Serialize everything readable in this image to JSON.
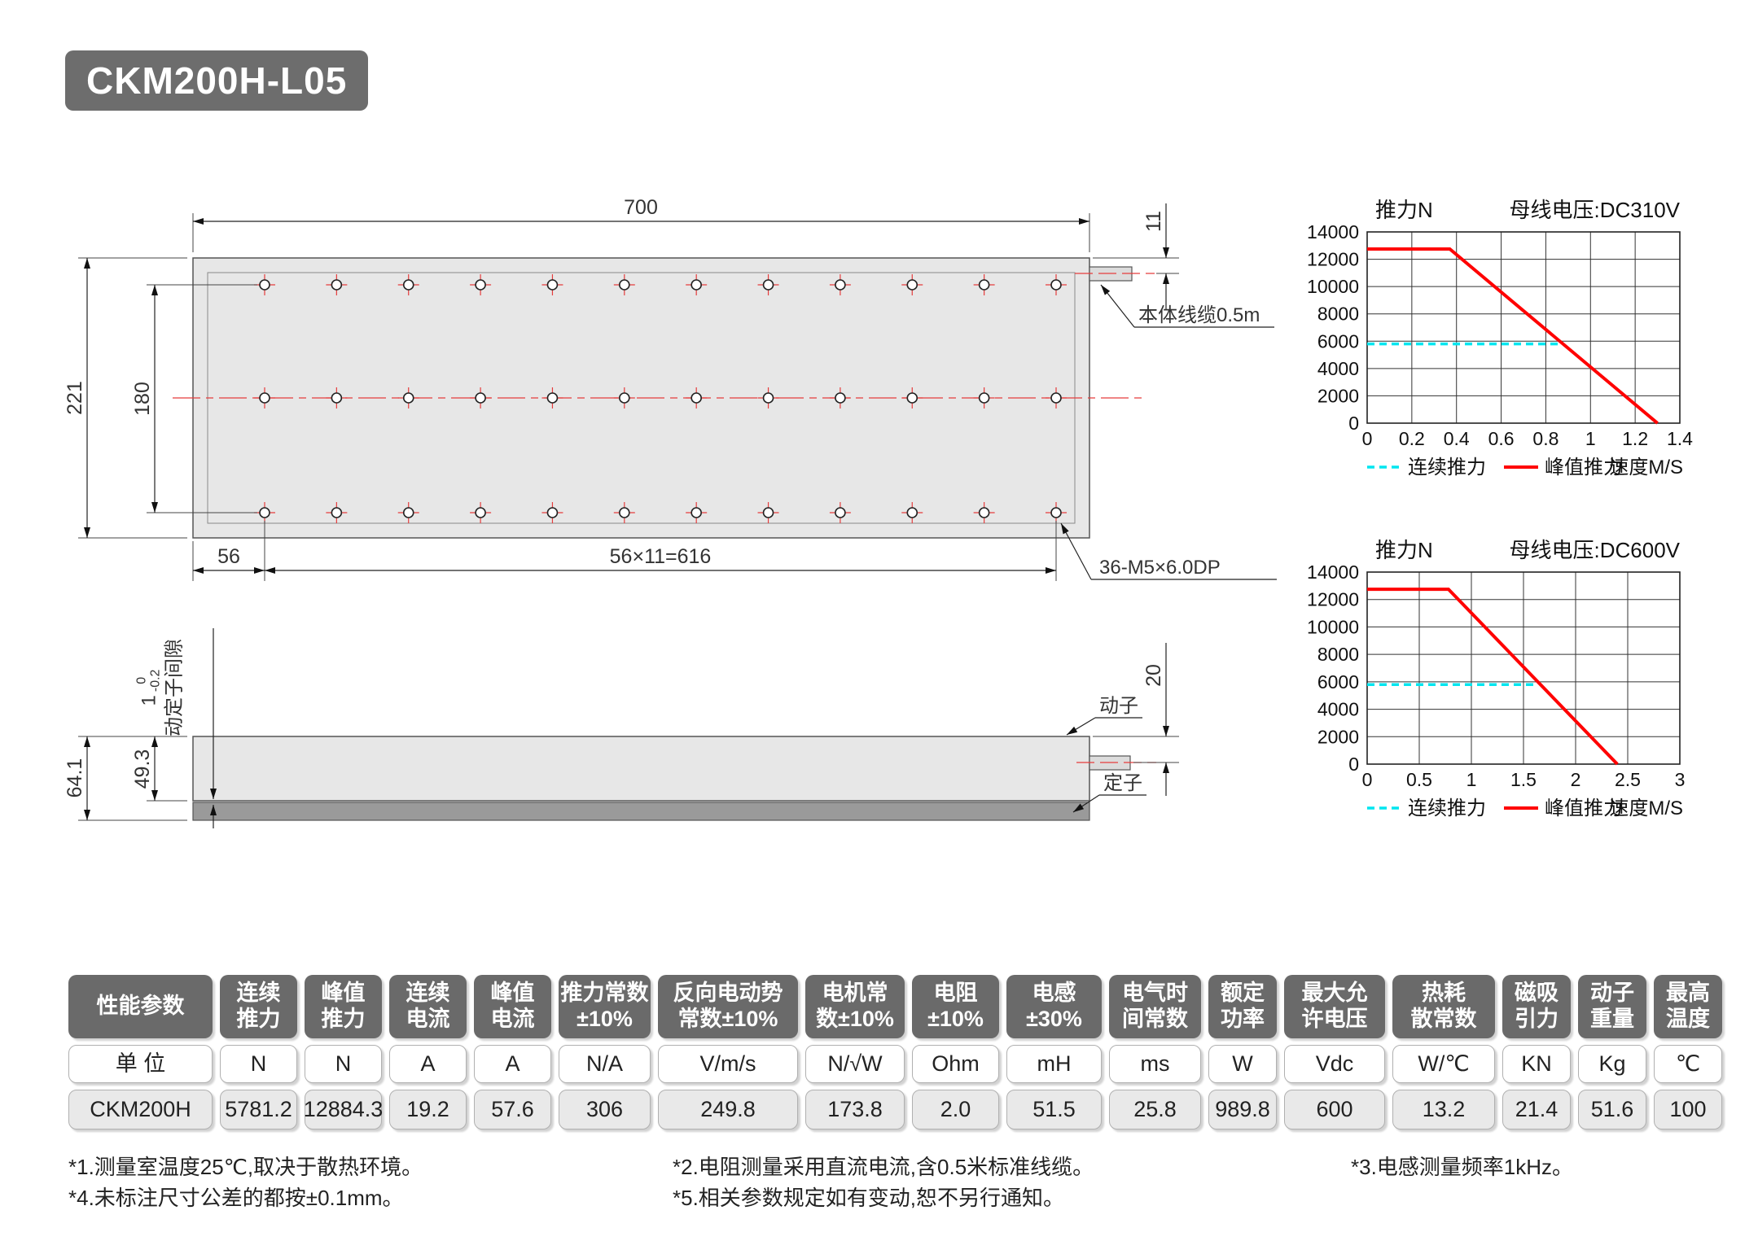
{
  "title_badge": "CKM200H-L05",
  "drawing": {
    "top_view": {
      "width": "700",
      "height": "221",
      "hole_rows_span": "180",
      "first_hole": "56",
      "hole_pitch": "56×11=616",
      "cable_offset": "11",
      "cable_label": "本体线缆0.5m",
      "holes_label": "36-M5×6.0DP"
    },
    "side_view": {
      "total_height": "64.1",
      "mover_height": "49.3",
      "gap": {
        "nominal": "1",
        "upper": "0",
        "lower": "-0.2",
        "label": "动定子间隙"
      },
      "cable_height": "20",
      "mover_label": "动子",
      "stator_label": "定子"
    }
  },
  "chart_data": [
    {
      "type": "line",
      "title_left": "推力N",
      "title_right": "母线电压:DC310V",
      "xlabel": "速度M/S",
      "x_ticks": [
        0,
        0.2,
        0.4,
        0.6,
        0.8,
        1,
        1.2,
        1.4
      ],
      "y_ticks": [
        0,
        2000,
        4000,
        6000,
        8000,
        10000,
        12000,
        14000
      ],
      "xlim": [
        0,
        1.4
      ],
      "ylim": [
        0,
        14000
      ],
      "grid": true,
      "legend_position": "bottom",
      "series": [
        {
          "name": "连续推力",
          "style": "dashed",
          "color": "#00e6f0",
          "points": [
            [
              0,
              5800
            ],
            [
              0.875,
              5800
            ]
          ]
        },
        {
          "name": "峰值推力",
          "style": "solid",
          "color": "#ff0000",
          "points": [
            [
              0,
              12750
            ],
            [
              0.37,
              12750
            ],
            [
              1.3,
              0
            ]
          ]
        }
      ]
    },
    {
      "type": "line",
      "title_left": "推力N",
      "title_right": "母线电压:DC600V",
      "xlabel": "速度M/S",
      "x_ticks": [
        0,
        0.5,
        1,
        1.5,
        2,
        2.5,
        3
      ],
      "y_ticks": [
        0,
        2000,
        4000,
        6000,
        8000,
        10000,
        12000,
        14000
      ],
      "xlim": [
        0,
        3
      ],
      "ylim": [
        0,
        14000
      ],
      "grid": true,
      "legend_position": "bottom",
      "series": [
        {
          "name": "连续推力",
          "style": "dashed",
          "color": "#00e6f0",
          "points": [
            [
              0,
              5800
            ],
            [
              1.64,
              5800
            ]
          ]
        },
        {
          "name": "峰值推力",
          "style": "solid",
          "color": "#ff0000",
          "points": [
            [
              0,
              12750
            ],
            [
              0.78,
              12750
            ],
            [
              2.4,
              0
            ]
          ]
        }
      ]
    }
  ],
  "table": {
    "headers": [
      "性能参数",
      "连续\n推力",
      "峰值\n推力",
      "连续\n电流",
      "峰值\n电流",
      "推力常数\n±10%",
      "反向电动势\n常数±10%",
      "电机常\n数±10%",
      "电阻\n±10%",
      "电感\n±30%",
      "电气时\n间常数",
      "额定\n功率",
      "最大允\n许电压",
      "热耗\n散常数",
      "磁吸\n引力",
      "动子\n重量",
      "最高\n温度"
    ],
    "units": [
      "单 位",
      "N",
      "N",
      "A",
      "A",
      "N/A",
      "V/m/s",
      "N/√W",
      "Ohm",
      "mH",
      "ms",
      "W",
      "Vdc",
      "W/℃",
      "KN",
      "Kg",
      "℃"
    ],
    "values": [
      "CKM200H",
      "5781.2",
      "12884.3",
      "19.2",
      "57.6",
      "306",
      "249.8",
      "173.8",
      "2.0",
      "51.5",
      "25.8",
      "989.8",
      "600",
      "13.2",
      "21.4",
      "51.6",
      "100"
    ]
  },
  "footnotes": {
    "n1": "*1.测量室温度25℃,取决于散热环境。",
    "n2": "*2.电阻测量采用直流电流,含0.5米标准线缆。",
    "n3": "*3.电感测量频率1kHz。",
    "n4": "*4.未标注尺寸公差的都按±0.1mm。",
    "n5": "*5.相关参数规定如有变动,恕不另行通知。"
  }
}
